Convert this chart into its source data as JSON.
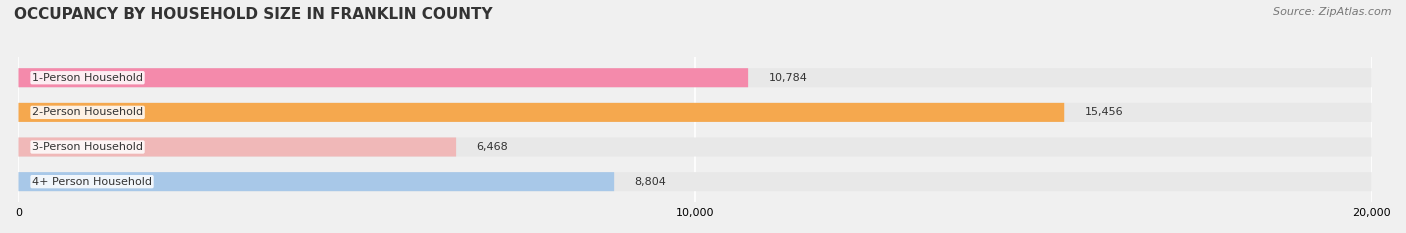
{
  "title": "OCCUPANCY BY HOUSEHOLD SIZE IN FRANKLIN COUNTY",
  "source": "Source: ZipAtlas.com",
  "categories": [
    "1-Person Household",
    "2-Person Household",
    "3-Person Household",
    "4+ Person Household"
  ],
  "values": [
    10784,
    15456,
    6468,
    8804
  ],
  "bar_colors": [
    "#f48aab",
    "#f5a84e",
    "#f0b8b8",
    "#a8c8e8"
  ],
  "xlim": [
    0,
    20000
  ],
  "xticks": [
    0,
    10000,
    20000
  ],
  "xticklabels": [
    "0",
    "10,000",
    "20,000"
  ],
  "background_color": "#f0f0f0",
  "bar_background_color": "#e8e8e8",
  "title_fontsize": 11,
  "source_fontsize": 8,
  "label_fontsize": 8,
  "value_fontsize": 8
}
